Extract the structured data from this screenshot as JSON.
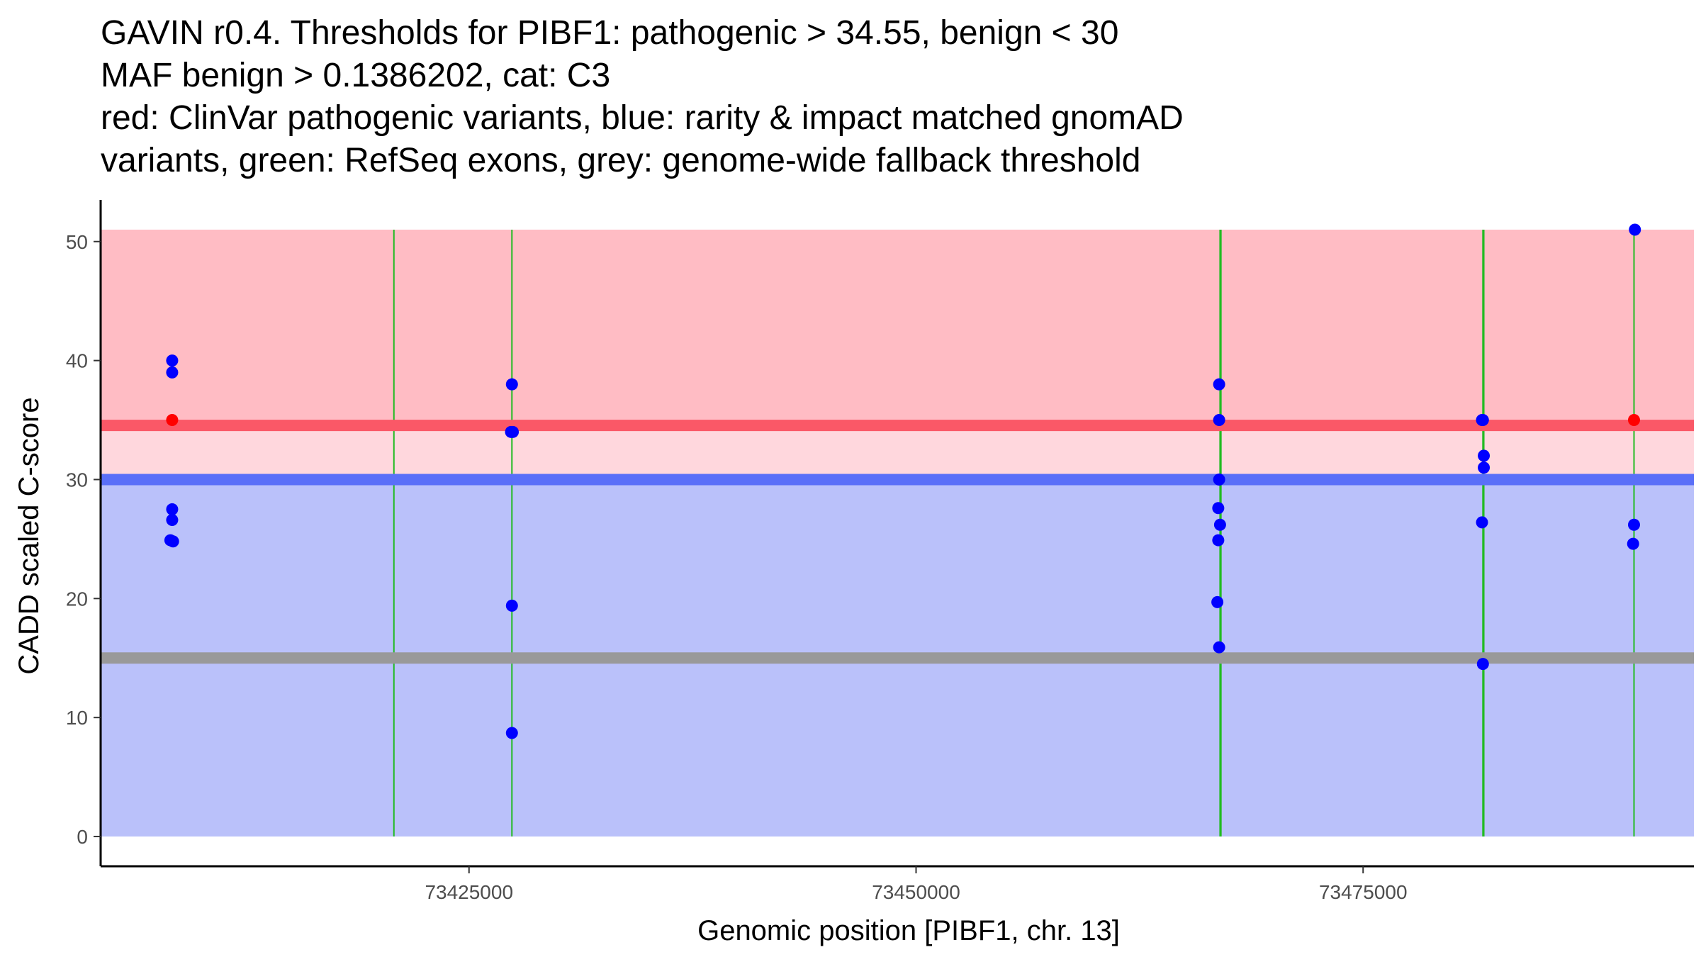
{
  "chart_data": {
    "type": "scatter",
    "title_lines": [
      "GAVIN r0.4. Thresholds for PIBF1: pathogenic > 34.55, benign < 30",
      "MAF benign > 0.1386202, cat: C3",
      "red: ClinVar pathogenic variants, blue: rarity & impact matched gnomAD",
      "variants, green: RefSeq exons, grey: genome-wide fallback threshold"
    ],
    "xlabel": "Genomic position [PIBF1, chr. 13]",
    "ylabel": "CADD scaled C-score",
    "xlim": [
      73404400,
      73493500
    ],
    "ylim": [
      -2.5,
      53.5
    ],
    "x_ticks": [
      73425000,
      73450000,
      73475000
    ],
    "x_tick_labels": [
      "73425000",
      "73450000",
      "73475000"
    ],
    "y_ticks": [
      0,
      10,
      20,
      30,
      40,
      50
    ],
    "y_tick_labels": [
      "0",
      "10",
      "20",
      "30",
      "40",
      "50"
    ],
    "grid": false,
    "thresholds": {
      "pathogenic": 34.55,
      "benign": 30,
      "fallback": 15,
      "max_score": 51
    },
    "colors": {
      "pathogenic_zone": "#ffbcc4",
      "middle_zone": "#ffd7dd",
      "benign_zone": "#bac1fa",
      "pathogenic_line": "#fa5867",
      "benign_line": "#5a6ff8",
      "fallback_line": "#999999",
      "exon_line": "#22bb22",
      "clinvar_point": "#ff0000",
      "gnomad_point": "#0000ff",
      "axis": "#000000"
    },
    "exons": [
      73420800,
      73427400,
      73467000,
      73467050,
      73481700,
      73481750,
      73490150
    ],
    "series": [
      {
        "name": "ClinVar pathogenic variants",
        "color": "#ff0000",
        "points": [
          {
            "x": 73408400,
            "y": 35
          },
          {
            "x": 73490150,
            "y": 35
          }
        ]
      },
      {
        "name": "rarity & impact matched gnomAD variants",
        "color": "#0000ff",
        "points": [
          {
            "x": 73408400,
            "y": 40
          },
          {
            "x": 73408400,
            "y": 39
          },
          {
            "x": 73408400,
            "y": 27.5
          },
          {
            "x": 73408400,
            "y": 26.6
          },
          {
            "x": 73408300,
            "y": 24.9
          },
          {
            "x": 73408450,
            "y": 24.8
          },
          {
            "x": 73427400,
            "y": 38
          },
          {
            "x": 73427350,
            "y": 34
          },
          {
            "x": 73427450,
            "y": 34
          },
          {
            "x": 73427400,
            "y": 19.4
          },
          {
            "x": 73427400,
            "y": 8.7
          },
          {
            "x": 73466950,
            "y": 38
          },
          {
            "x": 73466950,
            "y": 35
          },
          {
            "x": 73466950,
            "y": 30
          },
          {
            "x": 73466900,
            "y": 27.6
          },
          {
            "x": 73467000,
            "y": 26.2
          },
          {
            "x": 73466900,
            "y": 24.9
          },
          {
            "x": 73466850,
            "y": 19.7
          },
          {
            "x": 73466950,
            "y": 15.9
          },
          {
            "x": 73481700,
            "y": 35
          },
          {
            "x": 73481650,
            "y": 35
          },
          {
            "x": 73481750,
            "y": 32
          },
          {
            "x": 73481750,
            "y": 31
          },
          {
            "x": 73481650,
            "y": 26.4
          },
          {
            "x": 73481700,
            "y": 14.5
          },
          {
            "x": 73490200,
            "y": 51
          },
          {
            "x": 73490150,
            "y": 26.2
          },
          {
            "x": 73490100,
            "y": 24.6
          }
        ]
      }
    ]
  }
}
